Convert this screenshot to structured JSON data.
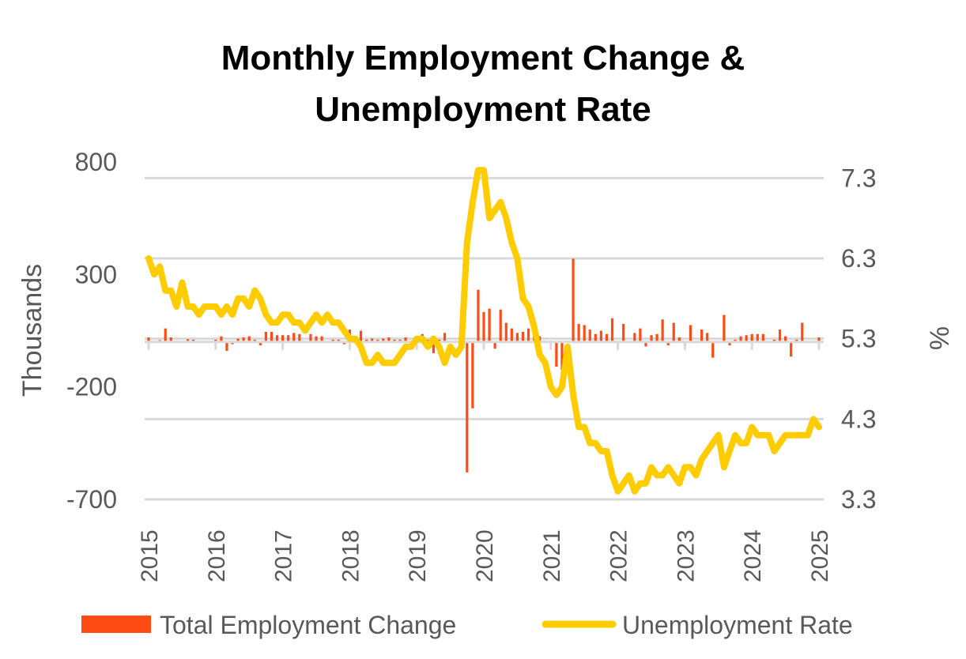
{
  "chart_data": {
    "type": "bar+line",
    "title_lines": [
      "Monthly Employment Change &",
      "Unemployment Rate"
    ],
    "ylabel_left": "Thousands",
    "ylabel_right": "%",
    "ylim_left": [
      -700,
      800
    ],
    "yticks_left": [
      "800",
      "300",
      "-200",
      "-700"
    ],
    "ylim_right": [
      3.3,
      7.5
    ],
    "yticks_right": [
      "7.3",
      "6.3",
      "5.3",
      "4.3",
      "3.3"
    ],
    "xtick_labels": [
      "2015",
      "2016",
      "2017",
      "2018",
      "2019",
      "2020",
      "2021",
      "2022",
      "2023",
      "2024",
      "2025"
    ],
    "grid": true,
    "legend_placement": "bottom",
    "colors": {
      "bars": "#FF4B14",
      "line": "#FFCC00",
      "grid": "#D9D9D9",
      "text": "#595959"
    },
    "x": [
      "2015-01",
      "2015-02",
      "2015-03",
      "2015-04",
      "2015-05",
      "2015-06",
      "2015-07",
      "2015-08",
      "2015-09",
      "2015-10",
      "2015-11",
      "2015-12",
      "2016-01",
      "2016-02",
      "2016-03",
      "2016-04",
      "2016-05",
      "2016-06",
      "2016-07",
      "2016-08",
      "2016-09",
      "2016-10",
      "2016-11",
      "2016-12",
      "2017-01",
      "2017-02",
      "2017-03",
      "2017-04",
      "2017-05",
      "2017-06",
      "2017-07",
      "2017-08",
      "2017-09",
      "2017-10",
      "2017-11",
      "2017-12",
      "2018-01",
      "2018-02",
      "2018-03",
      "2018-04",
      "2018-05",
      "2018-06",
      "2018-07",
      "2018-08",
      "2018-09",
      "2018-10",
      "2018-11",
      "2018-12",
      "2019-01",
      "2019-02",
      "2019-03",
      "2019-04",
      "2019-05",
      "2019-06",
      "2019-07",
      "2019-08",
      "2019-09",
      "2019-10",
      "2019-11",
      "2019-12",
      "2020-01",
      "2020-02",
      "2020-03",
      "2020-04",
      "2020-05",
      "2020-06",
      "2020-07",
      "2020-08",
      "2020-09",
      "2020-10",
      "2020-11",
      "2020-12",
      "2021-01",
      "2021-02",
      "2021-03",
      "2021-04",
      "2021-05",
      "2021-06",
      "2021-07",
      "2021-08",
      "2021-09",
      "2021-10",
      "2021-11",
      "2021-12",
      "2022-01",
      "2022-02",
      "2022-03",
      "2022-04",
      "2022-05",
      "2022-06",
      "2022-07",
      "2022-08",
      "2022-09",
      "2022-10",
      "2022-11",
      "2022-12",
      "2023-01",
      "2023-02",
      "2023-03",
      "2023-04",
      "2023-05",
      "2023-06",
      "2023-07",
      "2023-08",
      "2023-09",
      "2023-10",
      "2023-11",
      "2023-12",
      "2024-01",
      "2024-02",
      "2024-03",
      "2024-04",
      "2024-05",
      "2024-06",
      "2024-07",
      "2024-08",
      "2024-09",
      "2024-10",
      "2024-11",
      "2024-12",
      "2025-01"
    ],
    "series": [
      {
        "name": "Total Employment Change",
        "type": "bar",
        "axis": "left",
        "values": [
          20,
          0,
          8,
          60,
          20,
          5,
          0,
          12,
          10,
          0,
          -3,
          0,
          10,
          25,
          -40,
          -10,
          15,
          20,
          25,
          10,
          -15,
          45,
          45,
          30,
          30,
          30,
          40,
          35,
          0,
          35,
          25,
          25,
          0,
          10,
          10,
          -10,
          55,
          0,
          50,
          10,
          15,
          10,
          15,
          20,
          10,
          10,
          20,
          5,
          0,
          35,
          10,
          -50,
          10,
          40,
          0,
          5,
          0,
          -580,
          -295,
          232,
          133,
          148,
          -30,
          144,
          85,
          60,
          40,
          45,
          60,
          90,
          25,
          5,
          5,
          -110,
          -125,
          0,
          370,
          80,
          75,
          55,
          35,
          50,
          35,
          105,
          0,
          80,
          0,
          40,
          60,
          -20,
          30,
          35,
          100,
          -15,
          85,
          20,
          -15,
          75,
          -5,
          55,
          40,
          -70,
          -5,
          120,
          -15,
          10,
          25,
          30,
          35,
          35,
          35,
          0,
          10,
          55,
          25,
          -65,
          10,
          85,
          0,
          0,
          20
        ]
      },
      {
        "name": "Unemployment Rate",
        "type": "line",
        "axis": "right",
        "values": [
          6.3,
          6.1,
          6.2,
          5.9,
          5.9,
          5.7,
          6.0,
          5.7,
          5.7,
          5.6,
          5.7,
          5.7,
          5.7,
          5.6,
          5.7,
          5.6,
          5.8,
          5.8,
          5.7,
          5.9,
          5.8,
          5.6,
          5.5,
          5.5,
          5.6,
          5.6,
          5.5,
          5.5,
          5.4,
          5.5,
          5.6,
          5.5,
          5.6,
          5.5,
          5.5,
          5.4,
          5.3,
          5.3,
          5.2,
          5.0,
          5.0,
          5.1,
          5.0,
          5.0,
          5.0,
          5.1,
          5.2,
          5.2,
          5.3,
          5.3,
          5.2,
          5.3,
          5.2,
          5.0,
          5.2,
          5.1,
          5.2,
          6.5,
          7.0,
          7.4,
          7.4,
          6.8,
          6.9,
          7.0,
          6.8,
          6.5,
          6.3,
          5.8,
          5.7,
          5.45,
          5.1,
          5.0,
          4.7,
          4.6,
          4.7,
          5.2,
          4.6,
          4.2,
          4.2,
          4.0,
          4.0,
          3.9,
          3.9,
          3.6,
          3.4,
          3.5,
          3.6,
          3.4,
          3.5,
          3.5,
          3.7,
          3.6,
          3.6,
          3.7,
          3.6,
          3.5,
          3.7,
          3.7,
          3.6,
          3.8,
          3.9,
          4.0,
          4.1,
          3.7,
          3.9,
          4.1,
          4.0,
          4.0,
          4.2,
          4.1,
          4.1,
          4.1,
          3.9,
          4.0,
          4.1,
          4.1,
          4.1,
          4.1,
          4.1,
          4.3,
          4.2
        ]
      }
    ]
  }
}
